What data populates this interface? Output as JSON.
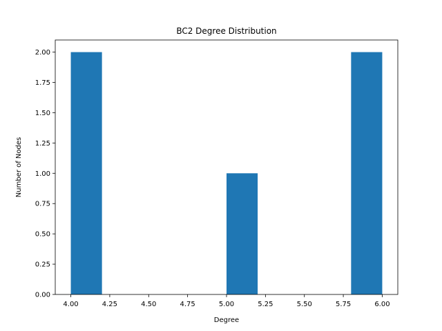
{
  "chart_data": {
    "type": "bar",
    "title": "BC2 Degree Distribution",
    "xlabel": "Degree",
    "ylabel": "Number of Nodes",
    "bins": [
      {
        "x0": 4.0,
        "x1": 4.2,
        "value": 2
      },
      {
        "x0": 4.2,
        "x1": 4.4,
        "value": 0
      },
      {
        "x0": 4.4,
        "x1": 4.6,
        "value": 0
      },
      {
        "x0": 4.6,
        "x1": 4.8,
        "value": 0
      },
      {
        "x0": 4.8,
        "x1": 5.0,
        "value": 0
      },
      {
        "x0": 5.0,
        "x1": 5.2,
        "value": 1
      },
      {
        "x0": 5.2,
        "x1": 5.4,
        "value": 0
      },
      {
        "x0": 5.4,
        "x1": 5.6,
        "value": 0
      },
      {
        "x0": 5.6,
        "x1": 5.8,
        "value": 0
      },
      {
        "x0": 5.8,
        "x1": 6.0,
        "value": 2
      }
    ],
    "xlim": [
      3.9,
      6.1
    ],
    "ylim": [
      0,
      2.1
    ],
    "xticks": [
      "4.00",
      "4.25",
      "4.50",
      "4.75",
      "5.00",
      "5.25",
      "5.50",
      "5.75",
      "6.00"
    ],
    "yticks": [
      "0.00",
      "0.25",
      "0.50",
      "0.75",
      "1.00",
      "1.25",
      "1.50",
      "1.75",
      "2.00"
    ],
    "bar_color": "#1f77b4",
    "grid": false,
    "legend": false
  }
}
